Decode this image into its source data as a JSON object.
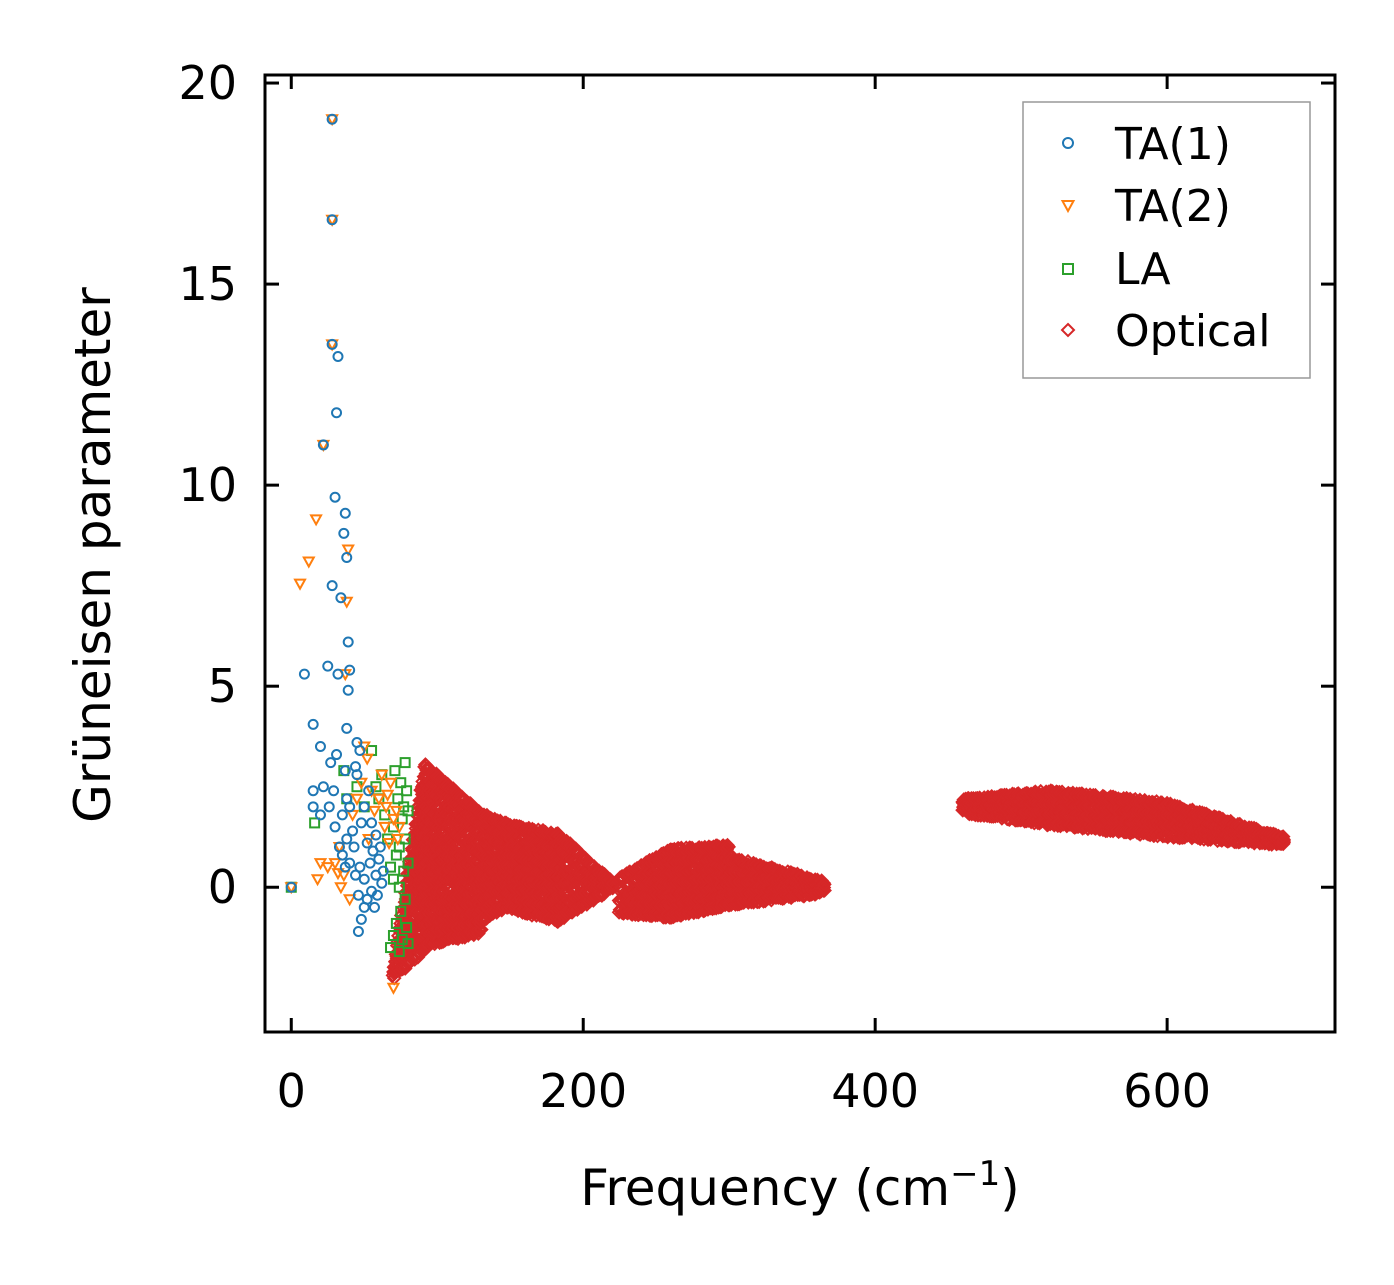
{
  "chart_data": {
    "type": "scatter",
    "title": "",
    "xlabel": "Frequency (cm",
    "xlabel_sup": "−1",
    "xlabel_tail": ")",
    "ylabel": "Grüneisen parameter",
    "xlim": [
      -18,
      715
    ],
    "ylim": [
      -3.6,
      20.2
    ],
    "xticks": [
      0,
      200,
      400,
      600
    ],
    "yticks": [
      0,
      5,
      10,
      15,
      20
    ],
    "xtick_labels": [
      "0",
      "200",
      "400",
      "600"
    ],
    "ytick_labels": [
      "0",
      "5",
      "10",
      "15",
      "20"
    ],
    "legend_position": "top-right",
    "series": [
      {
        "name": "TA(1)",
        "marker": "circle",
        "color": "#1f77b4",
        "points": [
          [
            0,
            0
          ],
          [
            9,
            5.3
          ],
          [
            15,
            4.05
          ],
          [
            15,
            2.4
          ],
          [
            15,
            2.0
          ],
          [
            20,
            3.5
          ],
          [
            20,
            1.8
          ],
          [
            22,
            2.5
          ],
          [
            22,
            11.0
          ],
          [
            25,
            5.5
          ],
          [
            26,
            2.0
          ],
          [
            27,
            3.1
          ],
          [
            28,
            13.5
          ],
          [
            28,
            19.1
          ],
          [
            28,
            16.6
          ],
          [
            28,
            7.5
          ],
          [
            29,
            2.4
          ],
          [
            30,
            9.7
          ],
          [
            30,
            1.5
          ],
          [
            31,
            3.3
          ],
          [
            31,
            11.8
          ],
          [
            32,
            13.2
          ],
          [
            32,
            5.3
          ],
          [
            33,
            1.0
          ],
          [
            34,
            7.2
          ],
          [
            35,
            1.8
          ],
          [
            35,
            0.8
          ],
          [
            36,
            8.8
          ],
          [
            37,
            9.3
          ],
          [
            37,
            2.9
          ],
          [
            37,
            0.5
          ],
          [
            38,
            8.2
          ],
          [
            38,
            3.95
          ],
          [
            38,
            1.2
          ],
          [
            38,
            2.2
          ],
          [
            39,
            6.1
          ],
          [
            39,
            4.9
          ],
          [
            40,
            5.4
          ],
          [
            40,
            2.0
          ],
          [
            40,
            0.6
          ],
          [
            42,
            1.4
          ],
          [
            43,
            1.0
          ],
          [
            44,
            3.0
          ],
          [
            44,
            0.3
          ],
          [
            45,
            3.6
          ],
          [
            45,
            2.8
          ],
          [
            46,
            -0.2
          ],
          [
            46,
            -1.1
          ],
          [
            47,
            3.4
          ],
          [
            47,
            0.5
          ],
          [
            48,
            1.6
          ],
          [
            48,
            -0.8
          ],
          [
            50,
            2.0
          ],
          [
            50,
            0.2
          ],
          [
            50,
            -0.5
          ],
          [
            52,
            1.1
          ],
          [
            52,
            -0.3
          ],
          [
            53,
            2.4
          ],
          [
            54,
            0.6
          ],
          [
            55,
            1.6
          ],
          [
            55,
            -0.1
          ],
          [
            56,
            0.9
          ],
          [
            57,
            -0.5
          ],
          [
            58,
            0.3
          ],
          [
            58,
            1.3
          ],
          [
            59,
            -0.2
          ],
          [
            60,
            0.7
          ],
          [
            61,
            1.0
          ],
          [
            62,
            0.1
          ],
          [
            63,
            0.4
          ]
        ]
      },
      {
        "name": "TA(2)",
        "marker": "triangle-down",
        "color": "#ff7f0e",
        "points": [
          [
            0,
            0
          ],
          [
            6,
            7.55
          ],
          [
            12,
            8.1
          ],
          [
            17,
            9.15
          ],
          [
            18,
            0.2
          ],
          [
            20,
            0.6
          ],
          [
            22,
            11.0
          ],
          [
            25,
            0.5
          ],
          [
            28,
            13.5
          ],
          [
            28,
            19.1
          ],
          [
            28,
            16.6
          ],
          [
            30,
            0.6
          ],
          [
            32,
            0.35
          ],
          [
            33,
            1.0
          ],
          [
            34,
            0.0
          ],
          [
            36,
            0.3
          ],
          [
            37,
            5.3
          ],
          [
            38,
            7.1
          ],
          [
            39,
            8.4
          ],
          [
            40,
            -0.3
          ],
          [
            42,
            1.8
          ],
          [
            45,
            2.2
          ],
          [
            48,
            2.6
          ],
          [
            50,
            3.5
          ],
          [
            52,
            3.2
          ],
          [
            53,
            1.2
          ],
          [
            55,
            2.4
          ],
          [
            57,
            1.9
          ],
          [
            60,
            2.2
          ],
          [
            62,
            2.8
          ],
          [
            64,
            1.5
          ],
          [
            65,
            2.0
          ],
          [
            66,
            2.3
          ],
          [
            67,
            1.1
          ],
          [
            68,
            2.6
          ],
          [
            70,
            1.7
          ],
          [
            70,
            -2.5
          ],
          [
            72,
            1.9
          ],
          [
            73,
            1.2
          ],
          [
            74,
            1.5
          ]
        ]
      },
      {
        "name": "LA",
        "marker": "square",
        "color": "#2ca02c",
        "points": [
          [
            0,
            0
          ],
          [
            16,
            1.6
          ],
          [
            36,
            2.9
          ],
          [
            38,
            2.2
          ],
          [
            45,
            2.5
          ],
          [
            50,
            2.0
          ],
          [
            55,
            3.4
          ],
          [
            58,
            2.5
          ],
          [
            60,
            2.2
          ],
          [
            62,
            2.8
          ],
          [
            64,
            1.8
          ],
          [
            66,
            1.2
          ],
          [
            68,
            0.5
          ],
          [
            68,
            -1.5
          ],
          [
            70,
            -1.2
          ],
          [
            70,
            0.2
          ],
          [
            70,
            1.5
          ],
          [
            71,
            2.9
          ],
          [
            72,
            -0.9
          ],
          [
            72,
            0.8
          ],
          [
            73,
            2.2
          ],
          [
            74,
            -1.6
          ],
          [
            74,
            0.0
          ],
          [
            74,
            1.0
          ],
          [
            75,
            2.6
          ],
          [
            75,
            -0.6
          ],
          [
            76,
            1.7
          ],
          [
            76,
            -1.3
          ],
          [
            77,
            0.4
          ],
          [
            77,
            2.0
          ],
          [
            78,
            3.1
          ],
          [
            78,
            -0.3
          ],
          [
            78,
            1.2
          ],
          [
            79,
            -1.0
          ],
          [
            79,
            2.4
          ],
          [
            80,
            0.6
          ],
          [
            80,
            1.9
          ],
          [
            80,
            -1.4
          ]
        ]
      },
      {
        "name": "Optical",
        "marker": "diamond",
        "color": "#d62728",
        "points": []
      }
    ],
    "optical_regions": [
      {
        "x": [
          70,
          92
        ],
        "top": [
          -2.1,
          3.1
        ],
        "bottom": [
          -2.2,
          -1.5
        ]
      },
      {
        "x": [
          92,
          130
        ],
        "top": [
          3.0,
          1.8
        ],
        "bottom": [
          -1.4,
          -1.1
        ]
      },
      {
        "x": [
          130,
          150
        ],
        "top": [
          1.8,
          1.5
        ],
        "bottom": [
          -0.8,
          -0.4
        ]
      },
      {
        "x": [
          150,
          182
        ],
        "top": [
          1.5,
          1.3
        ],
        "bottom": [
          -0.5,
          -0.8
        ]
      },
      {
        "x": [
          182,
          220
        ],
        "top": [
          1.3,
          0.1
        ],
        "bottom": [
          -0.8,
          0.0
        ]
      },
      {
        "x": [
          225,
          260
        ],
        "top": [
          0.2,
          0.9
        ],
        "bottom": [
          -0.6,
          -0.7
        ]
      },
      {
        "x": [
          260,
          300
        ],
        "top": [
          0.9,
          1.0
        ],
        "bottom": [
          -0.7,
          -0.4
        ]
      },
      {
        "x": [
          300,
          365
        ],
        "top": [
          0.7,
          0.1
        ],
        "bottom": [
          -0.4,
          -0.1
        ]
      },
      {
        "x": [
          460,
          520
        ],
        "top": [
          2.15,
          2.35
        ],
        "bottom": [
          1.9,
          1.6
        ]
      },
      {
        "x": [
          520,
          600
        ],
        "top": [
          2.35,
          2.05
        ],
        "bottom": [
          1.6,
          1.3
        ]
      },
      {
        "x": [
          600,
          680
        ],
        "top": [
          2.05,
          1.2
        ],
        "bottom": [
          1.3,
          1.1
        ]
      }
    ]
  }
}
